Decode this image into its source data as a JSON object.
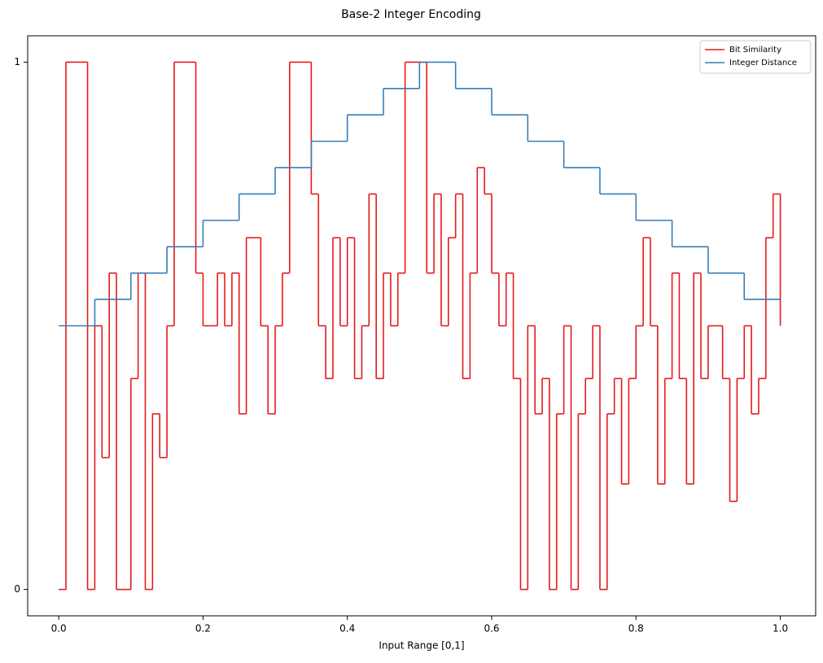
{
  "chart_data": {
    "type": "step",
    "title": "Base-2 Integer Encoding",
    "x_label": "Input Range [0,1]",
    "xlim": [
      -0.043,
      1.049
    ],
    "ylim": [
      -0.05,
      1.05
    ],
    "xticks": [
      {
        "value": 0,
        "label": "0.0"
      },
      0.2,
      0.4,
      0.6,
      0.8,
      {
        "value": 1,
        "label": "1.0"
      }
    ],
    "yticks": [
      0,
      1
    ],
    "legend": "upper right",
    "series": [
      {
        "name": "Bit Similarity",
        "color": "#e41a1c",
        "x": [
          0,
          0.01,
          0.02,
          0.03,
          0.04,
          0.05,
          0.06,
          0.07,
          0.08,
          0.09,
          0.1,
          0.11,
          0.12,
          0.13,
          0.14,
          0.15,
          0.16,
          0.17,
          0.18,
          0.19,
          0.2,
          0.21,
          0.22,
          0.23,
          0.24,
          0.25,
          0.26,
          0.27,
          0.28,
          0.29,
          0.3,
          0.31,
          0.32,
          0.33,
          0.34,
          0.35,
          0.36,
          0.37,
          0.38,
          0.39,
          0.4,
          0.41,
          0.42,
          0.43,
          0.44,
          0.45,
          0.46,
          0.47,
          0.48,
          0.49,
          0.5,
          0.51,
          0.52,
          0.53,
          0.54,
          0.55,
          0.56,
          0.57,
          0.58,
          0.59,
          0.6,
          0.61,
          0.62,
          0.63,
          0.64,
          0.65,
          0.66,
          0.67,
          0.68,
          0.69,
          0.7,
          0.71,
          0.72,
          0.73,
          0.74,
          0.75,
          0.76,
          0.77,
          0.78,
          0.79,
          0.8,
          0.81,
          0.82,
          0.83,
          0.84,
          0.85,
          0.86,
          0.87,
          0.88,
          0.89,
          0.9,
          0.91,
          0.92,
          0.93,
          0.94,
          0.95,
          0.96,
          0.97,
          0.98,
          0.99,
          1.0
        ],
        "values": [
          0,
          1,
          1,
          1,
          0,
          0.5,
          0.25,
          0.6,
          0,
          0,
          0.4,
          0.6,
          0,
          0.333,
          0.25,
          0.5,
          1,
          1,
          1,
          0.6,
          0.5,
          0.5,
          0.6,
          0.5,
          0.6,
          0.333,
          0.667,
          0.667,
          0.5,
          0.333,
          0.5,
          0.6,
          1,
          1,
          1,
          0.75,
          0.5,
          0.4,
          0.667,
          0.5,
          0.667,
          0.4,
          0.5,
          0.75,
          0.4,
          0.6,
          0.5,
          0.6,
          1,
          1,
          1,
          0.6,
          0.75,
          0.5,
          0.667,
          0.75,
          0.4,
          0.6,
          0.8,
          0.75,
          0.6,
          0.5,
          0.6,
          0.4,
          0,
          0.5,
          0.333,
          0.4,
          0,
          0.333,
          0.5,
          0,
          0.333,
          0.4,
          0.5,
          0,
          0.333,
          0.4,
          0.2,
          0.4,
          0.5,
          0.667,
          0.5,
          0.2,
          0.4,
          0.6,
          0.4,
          0.2,
          0.6,
          0.4,
          0.5,
          0.5,
          0.4,
          0.167,
          0.4,
          0.5,
          0.333,
          0.4,
          0.667,
          0.75,
          0.5
        ]
      },
      {
        "name": "Integer Distance",
        "color": "#377eb8",
        "x": [
          0,
          0.05,
          0.1,
          0.15,
          0.2,
          0.25,
          0.3,
          0.35,
          0.4,
          0.45,
          0.5,
          0.55,
          0.6,
          0.65,
          0.7,
          0.75,
          0.8,
          0.85,
          0.9,
          0.95,
          1.0
        ],
        "values": [
          0.5,
          0.55,
          0.6,
          0.65,
          0.7,
          0.75,
          0.8,
          0.85,
          0.9,
          0.95,
          1.0,
          0.95,
          0.9,
          0.85,
          0.8,
          0.75,
          0.7,
          0.65,
          0.6,
          0.55,
          0.55
        ]
      }
    ]
  }
}
